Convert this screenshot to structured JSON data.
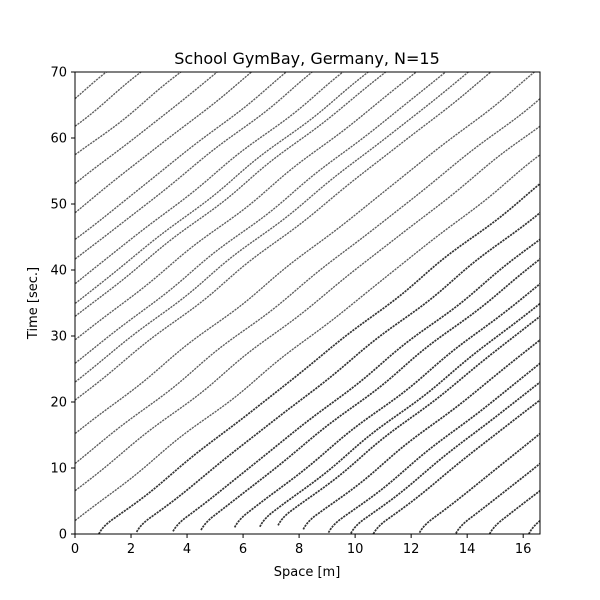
{
  "chart_data": {
    "type": "line",
    "title": "School GymBay, Germany, N=15",
    "xlabel": "Space [m]",
    "ylabel": "Time [sec.]",
    "xlim": [
      0,
      16.6
    ],
    "ylim": [
      0,
      70
    ],
    "xticks": [
      "0",
      "2",
      "4",
      "6",
      "8",
      "10",
      "12",
      "14",
      "16"
    ],
    "yticks": [
      "0",
      "10",
      "20",
      "30",
      "40",
      "50",
      "60",
      "70"
    ],
    "grid": false,
    "legend": "none",
    "line_color": "#555555",
    "ring_length": 16.6,
    "pedestrians": 15,
    "initial_positions": [
      0.85,
      2.2,
      3.5,
      4.5,
      5.7,
      6.6,
      7.25,
      8.15,
      9.05,
      9.85,
      10.65,
      12.3,
      13.6,
      14.8,
      16.2
    ],
    "start_times": [
      0.0,
      0.3,
      0.4,
      0.6,
      1.0,
      1.1,
      1.3,
      0.7,
      0.2,
      0.1,
      0.0,
      0.2,
      0.1,
      0.0,
      0.0
    ]
  }
}
